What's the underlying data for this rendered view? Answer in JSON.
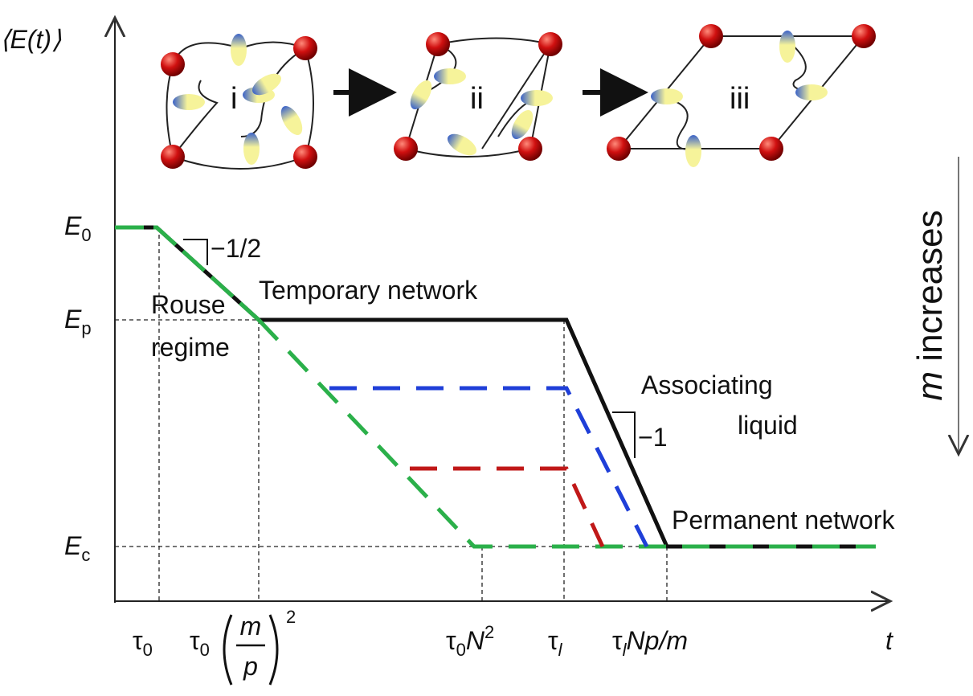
{
  "axes": {
    "y_label": "⟨E(t)⟩",
    "x_label": "t"
  },
  "y_levels": [
    {
      "symbol": "E",
      "sub": "0"
    },
    {
      "symbol": "E",
      "sub": "p"
    },
    {
      "symbol": "E",
      "sub": "c"
    }
  ],
  "x_marks": [
    {
      "symbol": "τ",
      "sub": "0"
    },
    {
      "symbol": "τ",
      "sub": "0",
      "fraction": [
        "m",
        "p"
      ],
      "sup": "2"
    },
    {
      "symbol": "τ",
      "sub": "0",
      "tail": "N",
      "sup": "2"
    },
    {
      "symbol": "τ",
      "sub": "l"
    },
    {
      "symbol": "τ",
      "sub": "l",
      "tail": "Np/m"
    }
  ],
  "stages": [
    "i",
    "ii",
    "iii"
  ],
  "slopes": [
    "−1/2",
    "−1"
  ],
  "regions": {
    "rouse": [
      "Rouse",
      "regime"
    ],
    "temporary": "Temporary network",
    "associating": [
      "Associating",
      "liquid"
    ],
    "permanent": "Permanent network"
  },
  "trend": {
    "variable": "m",
    "text": "increases"
  }
}
